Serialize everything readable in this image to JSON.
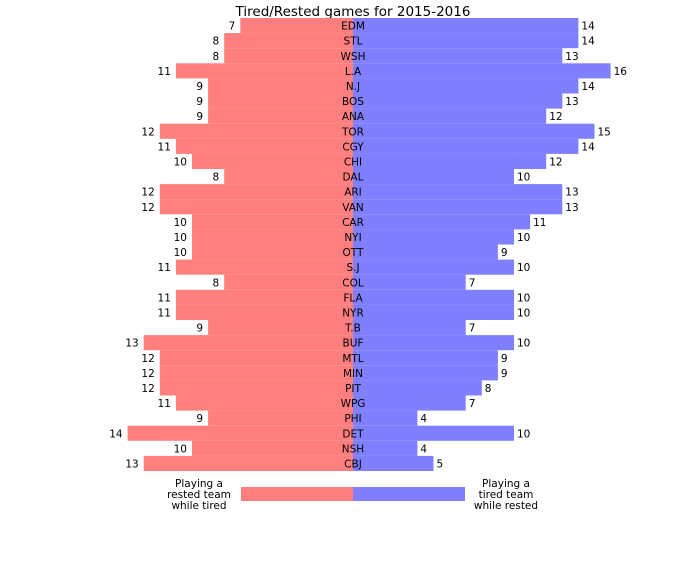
{
  "chart_data": {
    "type": "bar",
    "title": "Tired/Rested games for 2015-2016",
    "categories": [
      "EDM",
      "STL",
      "WSH",
      "L.A",
      "N.J",
      "BOS",
      "ANA",
      "TOR",
      "CGY",
      "CHI",
      "DAL",
      "ARI",
      "VAN",
      "CAR",
      "NYI",
      "OTT",
      "S.J",
      "COL",
      "FLA",
      "NYR",
      "T.B",
      "BUF",
      "MTL",
      "MIN",
      "PIT",
      "WPG",
      "PHI",
      "DET",
      "NSH",
      "CBJ"
    ],
    "series": [
      {
        "name": "Playing a rested team while tired",
        "values": [
          7,
          8,
          8,
          11,
          9,
          9,
          9,
          12,
          11,
          10,
          8,
          12,
          12,
          10,
          10,
          10,
          11,
          8,
          11,
          11,
          9,
          13,
          12,
          12,
          12,
          11,
          9,
          14,
          10,
          13
        ],
        "color": "#ff7f7f"
      },
      {
        "name": "Playing a tired team while rested",
        "values": [
          14,
          14,
          13,
          16,
          14,
          13,
          12,
          15,
          14,
          12,
          10,
          13,
          13,
          11,
          10,
          9,
          10,
          7,
          10,
          10,
          7,
          10,
          9,
          9,
          8,
          7,
          4,
          10,
          4,
          5
        ],
        "color": "#7f7fff"
      }
    ],
    "legend": {
      "left_label": [
        "Playing a",
        "rested team",
        "while tired"
      ],
      "right_label": [
        "Playing a",
        "tired team",
        "while rested"
      ]
    },
    "xlim": [
      -16,
      16
    ],
    "grid": false
  }
}
